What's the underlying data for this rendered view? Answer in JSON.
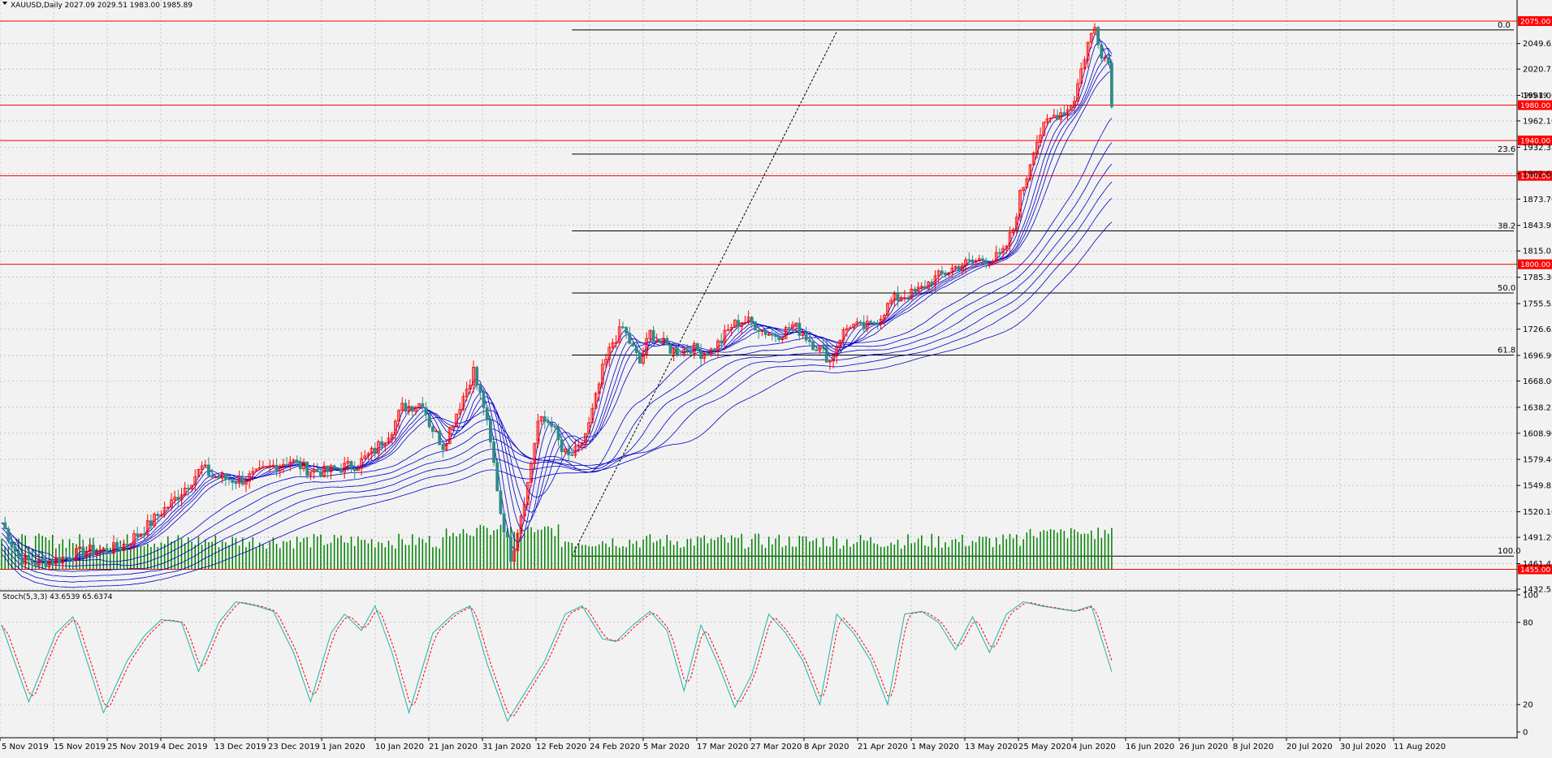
{
  "header": {
    "symbol_line": "XAUUSD,Daily  2027.09 2029.51 1983.00 1985.89"
  },
  "indicator": {
    "label": "Stoch(5,3,3) 43.6539 65.6374"
  },
  "colors": {
    "bull": "#ff0000",
    "bear": "#2e8b87",
    "ma": "#0000c8",
    "volume": "#008000",
    "stoch_main": "#20b2aa",
    "stoch_signal": "#ff0000",
    "level_line": "#ff0000",
    "fib_line": "#000000"
  },
  "chart_data": {
    "type": "candlestick",
    "price_axis": {
      "min": 1432.55,
      "max": 2075.0,
      "ticks": [
        "2049.65",
        "2020.75",
        "1991.00",
        "1962.10",
        "1932.35",
        "1902.60",
        "1873.70",
        "1843.95",
        "1815.05",
        "1785.30",
        "1755.55",
        "1726.65",
        "1696.90",
        "1668.00",
        "1638.25",
        "1608.90",
        "1579.40",
        "1549.85",
        "1520.10",
        "1491.20",
        "1461.45",
        "1432.55"
      ],
      "current_price": "1985.89"
    },
    "date_axis": [
      "5 Nov 2019",
      "15 Nov 2019",
      "25 Nov 2019",
      "4 Dec 2019",
      "13 Dec 2019",
      "23 Dec 2019",
      "1 Jan 2020",
      "10 Jan 2020",
      "21 Jan 2020",
      "31 Jan 2020",
      "12 Feb 2020",
      "24 Feb 2020",
      "5 Mar 2020",
      "17 Mar 2020",
      "27 Mar 2020",
      "8 Apr 2020",
      "21 Apr 2020",
      "1 May 2020",
      "13 May 2020",
      "25 May 2020",
      "4 Jun 2020",
      "16 Jun 2020",
      "26 Jun 2020",
      "8 Jul 2020",
      "20 Jul 2020",
      "30 Jul 2020",
      "11 Aug 2020"
    ],
    "horizontal_levels": [
      "2075.00",
      "1980.00",
      "1940.00",
      "1900.00",
      "1800.00",
      "1455.00"
    ],
    "fibonacci": {
      "high": 2065,
      "low": 1470,
      "levels": [
        {
          "label": "0.0",
          "price": 2065.0
        },
        {
          "label": "23.6",
          "price": 1924.6
        },
        {
          "label": "38.2",
          "price": 1837.7
        },
        {
          "label": "50.0",
          "price": 1767.5
        },
        {
          "label": "61.8",
          "price": 1697.3
        },
        {
          "label": "100.0",
          "price": 1470.0
        }
      ]
    },
    "price_path": [
      [
        0,
        1508
      ],
      [
        5,
        1468
      ],
      [
        10,
        1462
      ],
      [
        15,
        1465
      ],
      [
        20,
        1470
      ],
      [
        25,
        1476
      ],
      [
        30,
        1476
      ],
      [
        35,
        1480
      ],
      [
        42,
        1500
      ],
      [
        47,
        1520
      ],
      [
        50,
        1530
      ],
      [
        55,
        1552
      ],
      [
        59,
        1570
      ],
      [
        62,
        1560
      ],
      [
        66,
        1558
      ],
      [
        70,
        1555
      ],
      [
        75,
        1562
      ],
      [
        80,
        1572
      ],
      [
        85,
        1578
      ],
      [
        90,
        1568
      ],
      [
        95,
        1565
      ],
      [
        100,
        1570
      ],
      [
        105,
        1574
      ],
      [
        110,
        1590
      ],
      [
        115,
        1614
      ],
      [
        118,
        1638
      ],
      [
        121,
        1640
      ],
      [
        124,
        1644
      ],
      [
        126,
        1620
      ],
      [
        130,
        1595
      ],
      [
        134,
        1632
      ],
      [
        137,
        1660
      ],
      [
        139,
        1680
      ],
      [
        140,
        1664
      ],
      [
        142,
        1640
      ],
      [
        145,
        1574
      ],
      [
        147,
        1520
      ],
      [
        149,
        1486
      ],
      [
        150,
        1470
      ],
      [
        151,
        1482
      ],
      [
        153,
        1518
      ],
      [
        155,
        1552
      ],
      [
        158,
        1622
      ],
      [
        162,
        1622
      ],
      [
        165,
        1588
      ],
      [
        167,
        1582
      ],
      [
        170,
        1590
      ],
      [
        173,
        1618
      ],
      [
        175,
        1648
      ],
      [
        177,
        1680
      ],
      [
        180,
        1712
      ],
      [
        183,
        1728
      ],
      [
        185,
        1712
      ],
      [
        188,
        1688
      ],
      [
        191,
        1722
      ],
      [
        194,
        1712
      ],
      [
        197,
        1704
      ],
      [
        200,
        1702
      ],
      [
        203,
        1706
      ],
      [
        206,
        1700
      ],
      [
        209,
        1702
      ],
      [
        212,
        1714
      ],
      [
        215,
        1730
      ],
      [
        218,
        1736
      ],
      [
        221,
        1734
      ],
      [
        224,
        1726
      ],
      [
        227,
        1720
      ],
      [
        230,
        1722
      ],
      [
        233,
        1731
      ],
      [
        236,
        1722
      ],
      [
        239,
        1710
      ],
      [
        242,
        1702
      ],
      [
        244,
        1690
      ],
      [
        247,
        1718
      ],
      [
        250,
        1732
      ],
      [
        253,
        1728
      ],
      [
        256,
        1730
      ],
      [
        259,
        1742
      ],
      [
        262,
        1758
      ],
      [
        265,
        1764
      ],
      [
        268,
        1766
      ],
      [
        271,
        1772
      ],
      [
        274,
        1782
      ],
      [
        277,
        1788
      ],
      [
        280,
        1795
      ],
      [
        283,
        1800
      ],
      [
        286,
        1802
      ],
      [
        289,
        1806
      ],
      [
        292,
        1805
      ],
      [
        295,
        1812
      ],
      [
        298,
        1840
      ],
      [
        300,
        1878
      ],
      [
        302,
        1900
      ],
      [
        304,
        1932
      ],
      [
        306,
        1948
      ],
      [
        308,
        1960
      ],
      [
        310,
        1968
      ],
      [
        312,
        1972
      ],
      [
        314,
        1975
      ],
      [
        316,
        1988
      ],
      [
        318,
        2020
      ],
      [
        320,
        2050
      ],
      [
        322,
        2068
      ],
      [
        324,
        2040
      ],
      [
        326,
        2028
      ],
      [
        327,
        1985
      ]
    ],
    "ma_offsets": [
      -2,
      2,
      6,
      10,
      14,
      18,
      22,
      26,
      30
    ],
    "volume_max_relative": 1.0,
    "stochastic": {
      "main_last": 43.6539,
      "signal_last": 65.6374,
      "levels": [
        20,
        80
      ],
      "range": [
        0,
        100
      ],
      "ticks": [
        "100",
        "80",
        "20",
        "0"
      ],
      "main_path": [
        [
          0,
          78
        ],
        [
          8,
          22
        ],
        [
          16,
          72
        ],
        [
          21,
          84
        ],
        [
          30,
          14
        ],
        [
          37,
          52
        ],
        [
          42,
          70
        ],
        [
          47,
          82
        ],
        [
          53,
          80
        ],
        [
          58,
          44
        ],
        [
          64,
          80
        ],
        [
          69,
          95
        ],
        [
          75,
          92
        ],
        [
          80,
          88
        ],
        [
          86,
          58
        ],
        [
          91,
          22
        ],
        [
          97,
          72
        ],
        [
          101,
          86
        ],
        [
          106,
          74
        ],
        [
          110,
          92
        ],
        [
          115,
          58
        ],
        [
          120,
          14
        ],
        [
          127,
          72
        ],
        [
          133,
          86
        ],
        [
          138,
          92
        ],
        [
          143,
          50
        ],
        [
          149,
          8
        ],
        [
          155,
          32
        ],
        [
          160,
          52
        ],
        [
          166,
          86
        ],
        [
          171,
          92
        ],
        [
          177,
          68
        ],
        [
          181,
          66
        ],
        [
          186,
          78
        ],
        [
          191,
          88
        ],
        [
          196,
          74
        ],
        [
          201,
          30
        ],
        [
          206,
          78
        ],
        [
          211,
          50
        ],
        [
          216,
          18
        ],
        [
          221,
          42
        ],
        [
          226,
          86
        ],
        [
          231,
          72
        ],
        [
          236,
          52
        ],
        [
          241,
          20
        ],
        [
          246,
          86
        ],
        [
          251,
          72
        ],
        [
          256,
          52
        ],
        [
          261,
          20
        ],
        [
          266,
          86
        ],
        [
          271,
          88
        ],
        [
          276,
          80
        ],
        [
          281,
          60
        ],
        [
          286,
          84
        ],
        [
          291,
          58
        ],
        [
          296,
          86
        ],
        [
          301,
          95
        ],
        [
          306,
          92
        ],
        [
          311,
          90
        ],
        [
          316,
          88
        ],
        [
          321,
          92
        ],
        [
          327,
          44
        ]
      ]
    }
  }
}
